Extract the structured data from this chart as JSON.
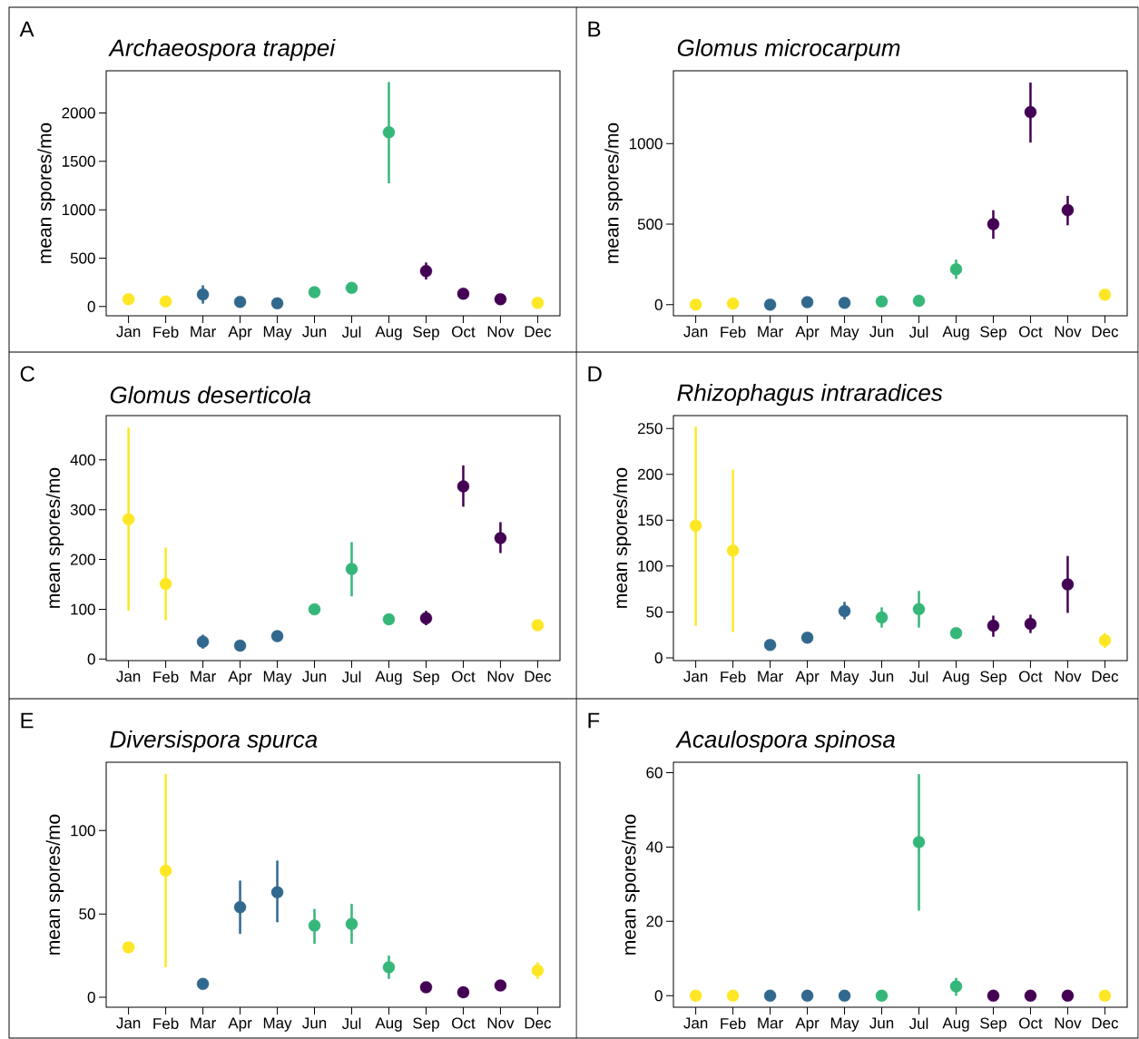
{
  "chart_data": [
    {
      "type": "scatter",
      "title": "Archaeospora trappei",
      "ylabel": "mean spores/mo",
      "annotations": [
        "A"
      ],
      "categories": [
        "Jan",
        "Feb",
        "Mar",
        "Apr",
        "May",
        "Jun",
        "Jul",
        "Aug",
        "Sep",
        "Oct",
        "Nov",
        "Dec"
      ],
      "values": [
        76,
        53,
        125,
        49,
        34,
        148,
        193,
        1799,
        367,
        133,
        76,
        38
      ],
      "errors": [
        null,
        null,
        [
          30,
          220
        ],
        null,
        null,
        null,
        null,
        [
          1273,
          2318
        ],
        [
          280,
          455
        ],
        null,
        null,
        null
      ],
      "colors": [
        "#fde725",
        "#fde725",
        "#31688e",
        "#31688e",
        "#31688e",
        "#35b779",
        "#35b779",
        "#35b779",
        "#440154",
        "#440154",
        "#440154",
        "#fde725"
      ],
      "ylim": [
        -95,
        2435
      ],
      "yticks": [
        0,
        500,
        1000,
        1500,
        2000
      ]
    },
    {
      "type": "scatter",
      "title": "Glomus microcarpum",
      "ylabel": "mean spores/mo",
      "annotations": [
        "B"
      ],
      "categories": [
        "Jan",
        "Feb",
        "Mar",
        "Apr",
        "May",
        "Jun",
        "Jul",
        "Aug",
        "Sep",
        "Oct",
        "Nov",
        "Dec"
      ],
      "values": [
        0,
        7,
        0,
        16,
        11,
        20,
        24,
        220,
        500,
        1196,
        587,
        62
      ],
      "errors": [
        null,
        null,
        null,
        null,
        null,
        null,
        null,
        [
          160,
          280
        ],
        [
          409,
          587
        ],
        [
          1007,
          1380
        ],
        [
          493,
          676
        ],
        null
      ],
      "colors": [
        "#fde725",
        "#fde725",
        "#31688e",
        "#31688e",
        "#31688e",
        "#35b779",
        "#35b779",
        "#35b779",
        "#440154",
        "#440154",
        "#440154",
        "#fde725"
      ],
      "ylim": [
        -69,
        1453
      ],
      "yticks": [
        0,
        500,
        1000
      ]
    },
    {
      "type": "scatter",
      "title": "Glomus deserticola",
      "ylabel": "mean spores/mo",
      "annotations": [
        "C"
      ],
      "categories": [
        "Jan",
        "Feb",
        "Mar",
        "Apr",
        "May",
        "Jun",
        "Jul",
        "Aug",
        "Sep",
        "Oct",
        "Nov",
        "Dec"
      ],
      "values": [
        281,
        151,
        35,
        27,
        46,
        100,
        181,
        80,
        82,
        347,
        243,
        68
      ],
      "errors": [
        [
          97,
          465
        ],
        [
          78,
          224
        ],
        [
          21,
          49
        ],
        null,
        null,
        null,
        [
          126,
          235
        ],
        [
          69,
          90
        ],
        [
          68,
          97
        ],
        [
          306,
          389
        ],
        [
          213,
          275
        ],
        null
      ],
      "colors": [
        "#fde725",
        "#fde725",
        "#31688e",
        "#31688e",
        "#31688e",
        "#35b779",
        "#35b779",
        "#35b779",
        "#440154",
        "#440154",
        "#440154",
        "#fde725"
      ],
      "ylim": [
        -3,
        489
      ],
      "yticks": [
        0,
        100,
        200,
        300,
        400
      ]
    },
    {
      "type": "scatter",
      "title": "Rhizophagus intraradices",
      "ylabel": "mean spores/mo",
      "annotations": [
        "D"
      ],
      "categories": [
        "Jan",
        "Feb",
        "Mar",
        "Apr",
        "May",
        "Jun",
        "Jul",
        "Aug",
        "Sep",
        "Oct",
        "Nov",
        "Dec"
      ],
      "values": [
        144,
        117,
        14,
        22,
        51,
        44,
        53,
        27,
        35,
        37,
        80,
        19
      ],
      "errors": [
        [
          35,
          252
        ],
        [
          28,
          205
        ],
        null,
        null,
        [
          42,
          61
        ],
        [
          33,
          55
        ],
        [
          33,
          73
        ],
        null,
        [
          23,
          46
        ],
        [
          27,
          47
        ],
        [
          49,
          111
        ],
        [
          11,
          27
        ]
      ],
      "colors": [
        "#fde725",
        "#fde725",
        "#31688e",
        "#31688e",
        "#31688e",
        "#35b779",
        "#35b779",
        "#35b779",
        "#440154",
        "#440154",
        "#440154",
        "#fde725"
      ],
      "ylim": [
        -3,
        264
      ],
      "yticks": [
        0,
        50,
        100,
        150,
        200,
        250
      ]
    },
    {
      "type": "scatter",
      "title": "Diversispora spurca",
      "ylabel": "mean spores/mo",
      "annotations": [
        "E"
      ],
      "categories": [
        "Jan",
        "Feb",
        "Mar",
        "Apr",
        "May",
        "Jun",
        "Jul",
        "Aug",
        "Sep",
        "Oct",
        "Nov",
        "Dec"
      ],
      "values": [
        30,
        76,
        8,
        54,
        63,
        43,
        44,
        18,
        6,
        3,
        7,
        16
      ],
      "errors": [
        null,
        [
          18,
          134
        ],
        null,
        [
          38,
          70
        ],
        [
          45,
          82
        ],
        [
          32,
          53
        ],
        [
          32,
          56
        ],
        [
          11,
          25
        ],
        null,
        null,
        null,
        [
          11,
          21
        ]
      ],
      "colors": [
        "#fde725",
        "#fde725",
        "#31688e",
        "#31688e",
        "#31688e",
        "#35b779",
        "#35b779",
        "#35b779",
        "#440154",
        "#440154",
        "#440154",
        "#fde725"
      ],
      "ylim": [
        -6,
        141
      ],
      "yticks": [
        0,
        50,
        100
      ]
    },
    {
      "type": "scatter",
      "title": "Acaulospora spinosa",
      "ylabel": "mean spores/mo",
      "annotations": [
        "F"
      ],
      "categories": [
        "Jan",
        "Feb",
        "Mar",
        "Apr",
        "May",
        "Jun",
        "Jul",
        "Aug",
        "Sep",
        "Oct",
        "Nov",
        "Dec"
      ],
      "values": [
        0,
        0,
        0,
        0,
        0,
        0,
        41.3,
        2.5,
        0,
        0,
        0,
        0
      ],
      "errors": [
        null,
        null,
        null,
        null,
        null,
        null,
        [
          22.9,
          59.6
        ],
        [
          0,
          4.8
        ],
        null,
        null,
        null,
        null
      ],
      "colors": [
        "#fde725",
        "#fde725",
        "#31688e",
        "#31688e",
        "#31688e",
        "#35b779",
        "#35b779",
        "#35b779",
        "#440154",
        "#440154",
        "#440154",
        "#fde725"
      ],
      "ylim": [
        -3.1,
        62.8
      ],
      "yticks": [
        0,
        20,
        40,
        60
      ]
    }
  ]
}
